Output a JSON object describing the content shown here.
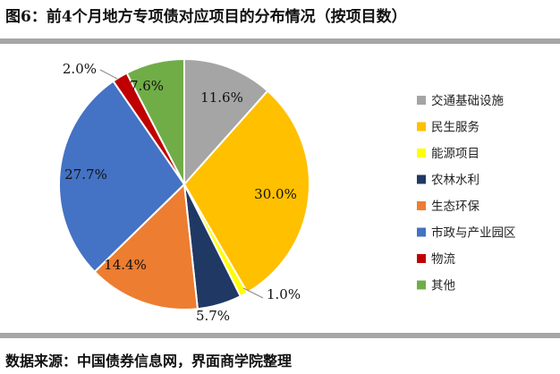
{
  "header": {
    "title": "图6：前4个月地方专项债对应项目的分布情况（按项目数）"
  },
  "footer": {
    "source": "数据来源：中国债券信息网，界面商学院整理"
  },
  "chart_data": {
    "type": "pie",
    "title": "图6：前4个月地方专项债对应项目的分布情况（按项目数）",
    "legend_position": "right",
    "slices": [
      {
        "name": "交通基础设施",
        "value": 11.6,
        "label": "11.6%",
        "color": "#a5a5a5"
      },
      {
        "name": "民生服务",
        "value": 30.0,
        "label": "30.0%",
        "color": "#ffc000"
      },
      {
        "name": "能源项目",
        "value": 1.0,
        "label": "1.0%",
        "color": "#ffff00"
      },
      {
        "name": "农林水利",
        "value": 5.7,
        "label": "5.7%",
        "color": "#203864"
      },
      {
        "name": "生态环保",
        "value": 14.4,
        "label": "14.4%",
        "color": "#ed7d31"
      },
      {
        "name": "市政与产业园区",
        "value": 27.7,
        "label": "27.7%",
        "color": "#4472c4"
      },
      {
        "name": "物流",
        "value": 2.0,
        "label": "2.0%",
        "color": "#c00000"
      },
      {
        "name": "其他",
        "value": 7.6,
        "label": "7.6%",
        "color": "#70ad47"
      }
    ]
  }
}
